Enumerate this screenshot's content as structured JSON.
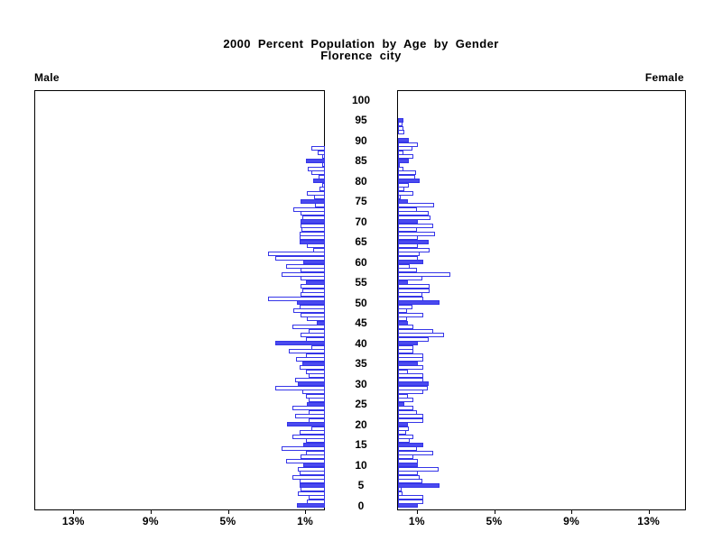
{
  "title": {
    "line1": "2000 Percent Population by Age by Gender",
    "line2": "Florence city"
  },
  "panels": {
    "left_label": "Male",
    "right_label": "Female"
  },
  "chart_data": {
    "type": "bar",
    "subtype": "population-pyramid",
    "title": "2000 Percent Population by Age by Gender",
    "subtitle": "Florence city",
    "legend_position": "none",
    "grid": false,
    "age_axis": {
      "min": 0,
      "max": 100,
      "tick_interval": 5,
      "tick_labels": [
        "100",
        "95",
        "90",
        "85",
        "80",
        "75",
        "70",
        "65",
        "60",
        "55",
        "50",
        "45",
        "40",
        "35",
        "30",
        "25",
        "20",
        "15",
        "10",
        "5",
        "0"
      ]
    },
    "pct_axis": {
      "max_pct": 15,
      "tick_values": [
        1,
        5,
        9,
        13
      ],
      "male_tick_labels": [
        "13%",
        "9%",
        "5%",
        "1%"
      ],
      "female_tick_labels": [
        "1%",
        "5%",
        "9%",
        "13%"
      ]
    },
    "style_rule": "ages divisible by 5 are solid filled bars; all other single-year ages are white bars with blue outline",
    "colors": {
      "bar_fill": "#4a4aef",
      "bar_outline": "#3535e8",
      "axis": "#000000",
      "background": "#ffffff"
    },
    "ages_start": 0,
    "series": [
      {
        "name": "Male",
        "values": [
          1.45,
          0.93,
          0.85,
          1.4,
          1.25,
          1.32,
          1.32,
          1.7,
          1.32,
          1.4,
          1.1,
          2.0,
          1.25,
          1.0,
          2.26,
          1.1,
          1.0,
          1.7,
          1.3,
          0.7,
          1.95,
          0.85,
          1.56,
          0.85,
          1.7,
          0.93,
          0.85,
          1.0,
          1.17,
          2.55,
          1.4,
          1.55,
          0.85,
          1.0,
          1.3,
          1.17,
          1.48,
          1.0,
          1.87,
          0.7,
          2.57,
          1.0,
          1.25,
          0.85,
          1.7,
          0.4,
          0.93,
          1.25,
          1.63,
          1.3,
          1.45,
          2.95,
          1.25,
          1.17,
          1.25,
          1.0,
          1.25,
          2.26,
          1.25,
          2.0,
          1.1,
          2.57,
          2.96,
          0.62,
          0.95,
          1.32,
          1.3,
          1.32,
          1.21,
          1.25,
          1.28,
          1.17,
          1.25,
          1.64,
          0.5,
          1.28,
          0.55,
          0.95,
          0.3,
          0.15,
          0.6,
          0.35,
          0.7,
          0.9,
          0.15,
          0.97,
          0.15,
          0.39,
          0.7,
          0.0,
          0.0,
          0.0,
          0.0,
          0.0,
          0.0,
          0.0,
          0.0,
          0.0,
          0.0,
          0.0,
          0.0
        ]
      },
      {
        "name": "Female",
        "values": [
          1.05,
          1.3,
          1.3,
          0.25,
          0.2,
          2.13,
          1.28,
          1.1,
          1.05,
          2.1,
          1.05,
          1.05,
          0.78,
          1.8,
          0.97,
          1.3,
          0.6,
          0.78,
          0.4,
          0.55,
          0.5,
          1.3,
          1.3,
          0.97,
          0.78,
          0.35,
          0.78,
          0.5,
          1.3,
          1.55,
          1.6,
          1.3,
          1.3,
          0.5,
          1.3,
          1.05,
          1.3,
          1.3,
          0.78,
          0.78,
          1.05,
          1.6,
          2.37,
          1.8,
          0.78,
          0.5,
          0.47,
          1.3,
          0.47,
          0.76,
          2.13,
          1.3,
          1.25,
          1.65,
          1.65,
          0.5,
          1.28,
          2.7,
          1.0,
          0.6,
          1.3,
          1.05,
          1.1,
          1.65,
          1.05,
          1.6,
          1.05,
          1.9,
          1.0,
          1.8,
          1.05,
          1.67,
          1.6,
          1.0,
          1.85,
          0.5,
          0.15,
          0.8,
          0.35,
          0.55,
          1.1,
          0.9,
          0.95,
          0.3,
          0.05,
          0.55,
          0.78,
          0.3,
          0.76,
          1.05,
          0.55,
          0.0,
          0.33,
          0.3,
          0.25,
          0.3,
          0.0,
          0.0,
          0.0,
          0.0,
          0.0
        ]
      }
    ]
  }
}
